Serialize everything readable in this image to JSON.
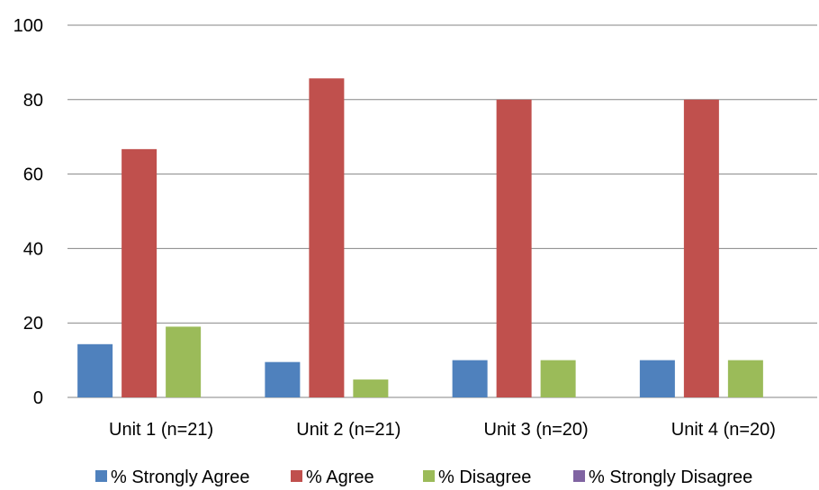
{
  "chart_data": {
    "type": "bar",
    "categories": [
      "Unit 1 (n=21)",
      "Unit 2 (n=21)",
      "Unit 3 (n=20)",
      "Unit 4 (n=20)"
    ],
    "series": [
      {
        "name": "% Strongly Agree",
        "color": "#4F81BD",
        "values": [
          14.3,
          9.5,
          10,
          10
        ]
      },
      {
        "name": "% Agree",
        "color": "#C0504D",
        "values": [
          66.7,
          85.7,
          80,
          80
        ]
      },
      {
        "name": "% Disagree",
        "color": "#9BBB59",
        "values": [
          19.0,
          4.8,
          10,
          10
        ]
      },
      {
        "name": "% Strongly Disagree",
        "color": "#8064A2",
        "values": [
          0,
          0,
          0,
          0
        ]
      }
    ],
    "ylim": [
      0,
      100
    ],
    "yticks": [
      0,
      20,
      40,
      60,
      80,
      100
    ],
    "grid": true,
    "legend_position": "bottom"
  }
}
